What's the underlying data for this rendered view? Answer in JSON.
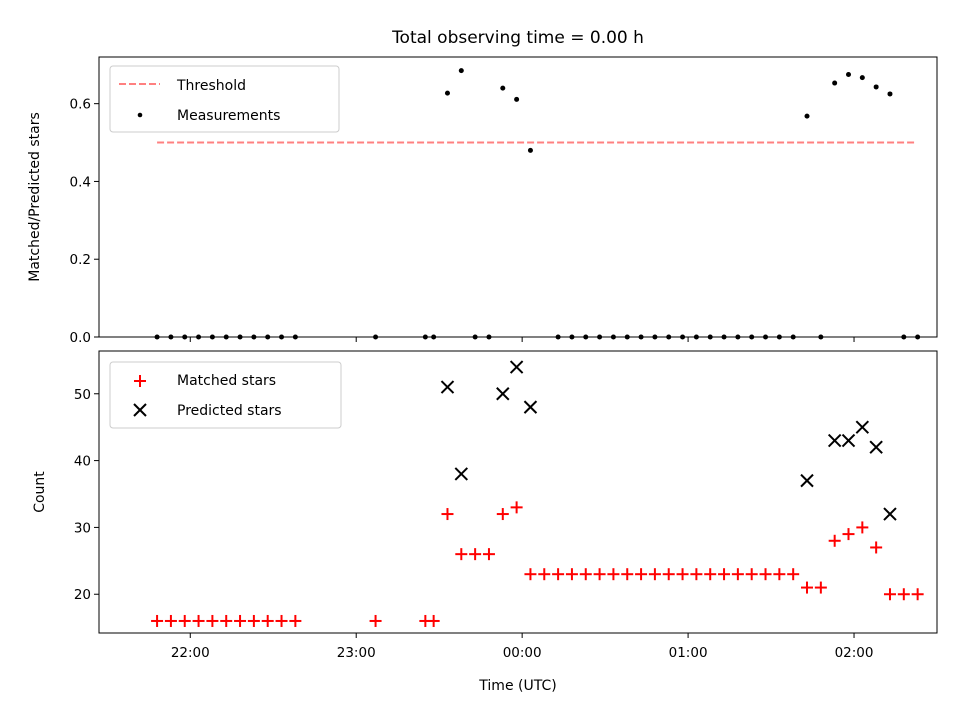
{
  "chart_data": [
    {
      "type": "scatter",
      "title": "Total observing time = 0.00 h",
      "xlabel": "",
      "ylabel": "Matched/Predicted stars",
      "xlim": [
        "21:27",
        "02:30"
      ],
      "ylim": [
        0,
        0.72
      ],
      "yticks": [
        0.0,
        0.2,
        0.4,
        0.6
      ],
      "ytick_labels": [
        "0.0",
        "0.2",
        "0.4",
        "0.6"
      ],
      "legend_position": "upper-left",
      "legend": [
        {
          "label": "Threshold",
          "marker": "dashed-line",
          "color": "#ff8080"
        },
        {
          "label": "Measurements",
          "marker": "dot",
          "color": "#000000"
        }
      ],
      "series": [
        {
          "name": "Threshold",
          "style": "dashed-line",
          "color": "#ff8080",
          "x": [
            "21:48",
            "02:22"
          ],
          "y": [
            0.5,
            0.5
          ]
        },
        {
          "name": "Measurements",
          "style": "dot",
          "color": "#000000",
          "points": [
            [
              "21:48",
              0.0
            ],
            [
              "21:53",
              0.0
            ],
            [
              "21:58",
              0.0
            ],
            [
              "22:03",
              0.0
            ],
            [
              "22:08",
              0.0
            ],
            [
              "22:13",
              0.0
            ],
            [
              "22:18",
              0.0
            ],
            [
              "22:23",
              0.0
            ],
            [
              "22:28",
              0.0
            ],
            [
              "22:33",
              0.0
            ],
            [
              "22:38",
              0.0
            ],
            [
              "23:07",
              0.0
            ],
            [
              "23:25",
              0.0
            ],
            [
              "23:28",
              0.0
            ],
            [
              "23:33",
              0.627
            ],
            [
              "23:38",
              0.685
            ],
            [
              "23:43",
              0.0
            ],
            [
              "23:48",
              0.0
            ],
            [
              "23:53",
              0.64
            ],
            [
              "23:58",
              0.611
            ],
            [
              "00:03",
              0.48
            ],
            [
              "00:13",
              0.0
            ],
            [
              "00:18",
              0.0
            ],
            [
              "00:23",
              0.0
            ],
            [
              "00:28",
              0.0
            ],
            [
              "00:33",
              0.0
            ],
            [
              "00:38",
              0.0
            ],
            [
              "00:43",
              0.0
            ],
            [
              "00:48",
              0.0
            ],
            [
              "00:53",
              0.0
            ],
            [
              "00:58",
              0.0
            ],
            [
              "01:03",
              0.0
            ],
            [
              "01:08",
              0.0
            ],
            [
              "01:13",
              0.0
            ],
            [
              "01:18",
              0.0
            ],
            [
              "01:23",
              0.0
            ],
            [
              "01:28",
              0.0
            ],
            [
              "01:33",
              0.0
            ],
            [
              "01:38",
              0.0
            ],
            [
              "01:43",
              0.568
            ],
            [
              "01:48",
              0.0
            ],
            [
              "01:53",
              0.653
            ],
            [
              "01:58",
              0.675
            ],
            [
              "02:03",
              0.667
            ],
            [
              "02:08",
              0.643
            ],
            [
              "02:13",
              0.625
            ],
            [
              "02:18",
              0.0
            ],
            [
              "02:23",
              0.0
            ]
          ]
        }
      ]
    },
    {
      "type": "scatter",
      "title": "",
      "xlabel": "Time (UTC)",
      "ylabel": "Count",
      "xlim": [
        "21:27",
        "02:30"
      ],
      "ylim": [
        14.2,
        56.4
      ],
      "yticks": [
        20,
        30,
        40,
        50
      ],
      "ytick_labels": [
        "20",
        "30",
        "40",
        "50"
      ],
      "xticks": [
        "22:00",
        "23:00",
        "00:00",
        "01:00",
        "02:00"
      ],
      "xtick_labels": [
        "22:00",
        "23:00",
        "00:00",
        "01:00",
        "02:00"
      ],
      "legend_position": "upper-left",
      "legend": [
        {
          "label": "Matched stars",
          "marker": "plus",
          "color": "#ff0000"
        },
        {
          "label": "Predicted stars",
          "marker": "x",
          "color": "#000000"
        }
      ],
      "series": [
        {
          "name": "Matched stars",
          "style": "plus",
          "color": "#ff0000",
          "points": [
            [
              "21:48",
              16
            ],
            [
              "21:53",
              16
            ],
            [
              "21:58",
              16
            ],
            [
              "22:03",
              16
            ],
            [
              "22:08",
              16
            ],
            [
              "22:13",
              16
            ],
            [
              "22:18",
              16
            ],
            [
              "22:23",
              16
            ],
            [
              "22:28",
              16
            ],
            [
              "22:33",
              16
            ],
            [
              "22:38",
              16
            ],
            [
              "23:07",
              16
            ],
            [
              "23:25",
              16
            ],
            [
              "23:28",
              16
            ],
            [
              "23:33",
              32
            ],
            [
              "23:38",
              26
            ],
            [
              "23:43",
              26
            ],
            [
              "23:48",
              26
            ],
            [
              "23:53",
              32
            ],
            [
              "23:58",
              33
            ],
            [
              "00:03",
              23
            ],
            [
              "00:08",
              23
            ],
            [
              "00:13",
              23
            ],
            [
              "00:18",
              23
            ],
            [
              "00:23",
              23
            ],
            [
              "00:28",
              23
            ],
            [
              "00:33",
              23
            ],
            [
              "00:38",
              23
            ],
            [
              "00:43",
              23
            ],
            [
              "00:48",
              23
            ],
            [
              "00:53",
              23
            ],
            [
              "00:58",
              23
            ],
            [
              "01:03",
              23
            ],
            [
              "01:08",
              23
            ],
            [
              "01:13",
              23
            ],
            [
              "01:18",
              23
            ],
            [
              "01:23",
              23
            ],
            [
              "01:28",
              23
            ],
            [
              "01:33",
              23
            ],
            [
              "01:38",
              23
            ],
            [
              "01:43",
              21
            ],
            [
              "01:48",
              21
            ],
            [
              "01:53",
              28
            ],
            [
              "01:58",
              29
            ],
            [
              "02:03",
              30
            ],
            [
              "02:08",
              27
            ],
            [
              "02:13",
              20
            ],
            [
              "02:18",
              20
            ],
            [
              "02:23",
              20
            ]
          ]
        },
        {
          "name": "Predicted stars",
          "style": "x",
          "color": "#000000",
          "points": [
            [
              "23:33",
              51
            ],
            [
              "23:38",
              38
            ],
            [
              "23:53",
              50
            ],
            [
              "23:58",
              54
            ],
            [
              "00:03",
              48
            ],
            [
              "01:43",
              37
            ],
            [
              "01:53",
              43
            ],
            [
              "01:58",
              43
            ],
            [
              "02:03",
              45
            ],
            [
              "02:08",
              42
            ],
            [
              "02:13",
              32
            ]
          ]
        }
      ]
    }
  ]
}
